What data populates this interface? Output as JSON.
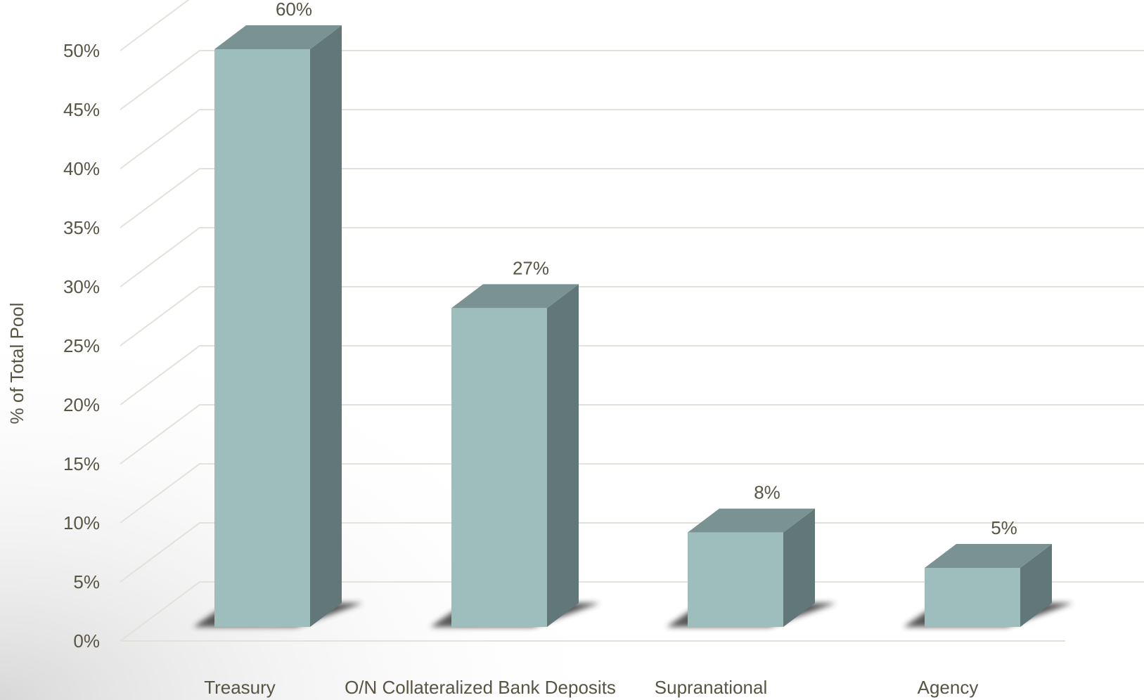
{
  "chart_data": {
    "type": "bar",
    "title": "",
    "xlabel": "",
    "ylabel": "% of Total Pool",
    "categories": [
      "Treasury",
      "O/N Collateralized Bank Deposits",
      "Supranational",
      "Agency"
    ],
    "values": [
      60,
      27,
      8,
      5
    ],
    "value_labels": [
      "60%",
      "27%",
      "8%",
      "5%"
    ],
    "ylim": [
      0,
      50
    ],
    "yticks": [
      0,
      5,
      10,
      15,
      20,
      25,
      30,
      35,
      40,
      45,
      50
    ],
    "ytick_labels": [
      "0%",
      "5%",
      "10%",
      "15%",
      "20%",
      "25%",
      "30%",
      "35%",
      "40%",
      "45%",
      "50%"
    ],
    "grid": true,
    "style": "3d-column",
    "colors": {
      "front": "#9dbebd",
      "side": "#627777",
      "top": "#7b9292",
      "grid": "#e2e2da",
      "text": "#595544"
    }
  }
}
